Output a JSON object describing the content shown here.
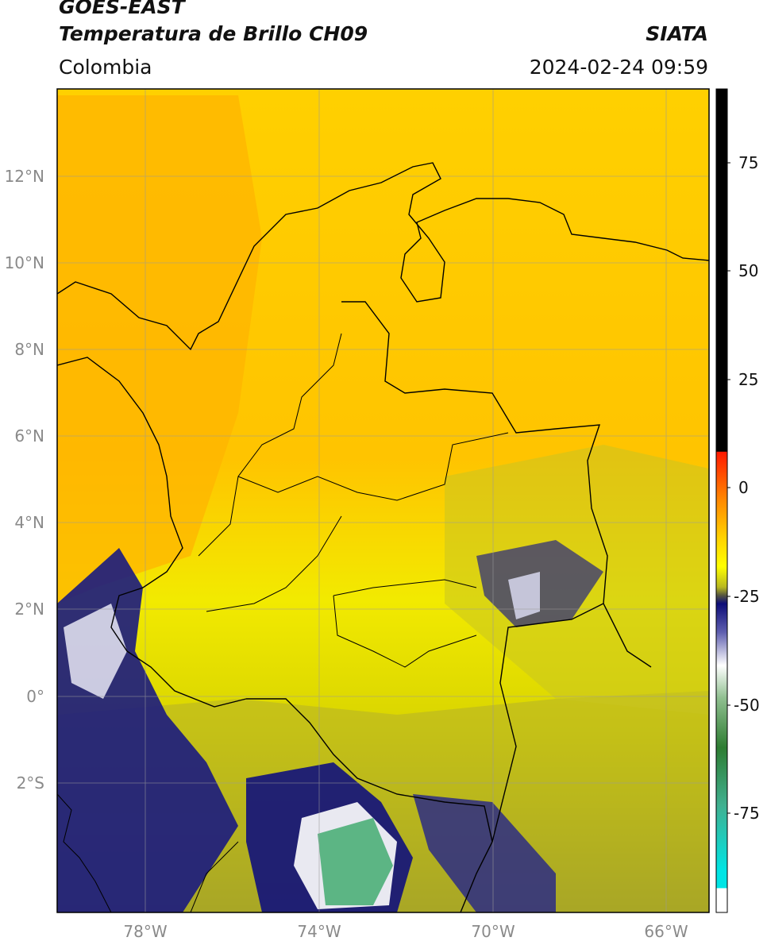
{
  "header": {
    "satellite": "GOES-EAST",
    "product": "Temperatura de Brillo CH09",
    "region": "Colombia",
    "organization": "SIATA",
    "timestamp": "2024-02-24 09:59"
  },
  "map": {
    "lat_labels": [
      "12°N",
      "10°N",
      "8°N",
      "6°N",
      "4°N",
      "2°N",
      "0°",
      "2°S"
    ],
    "lon_labels": [
      "78°W",
      "74°W",
      "70°W",
      "66°W"
    ],
    "colorbar": {
      "labels": [
        "75",
        "50",
        "25",
        "0",
        "-25",
        "-50",
        "-75"
      ],
      "colors": {
        "black": "#000000",
        "red": "#ff1a00",
        "orange": "#ffa000",
        "yellow": "#ffff00",
        "olive": "#8c8c2a",
        "navy": "#101080",
        "white": "#ffffff",
        "green": "#3a8a3a",
        "cyan": "#00e0e0"
      }
    }
  }
}
